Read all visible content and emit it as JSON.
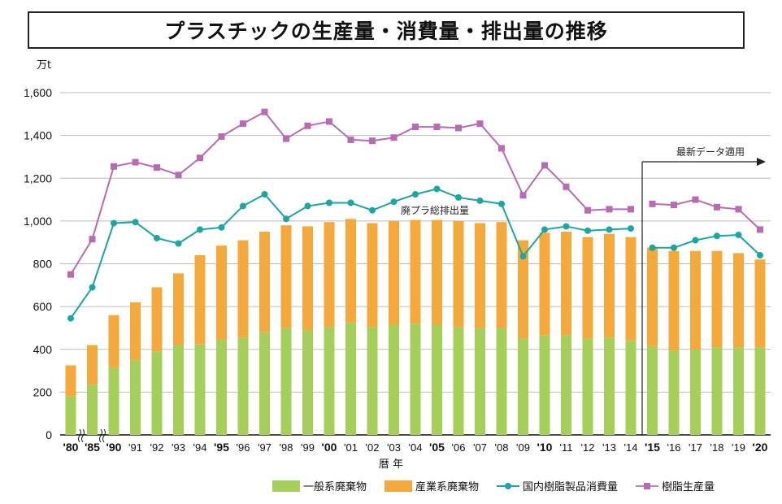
{
  "title": "プラスチックの生産量・消費量・排出量の推移",
  "y_unit": "万t",
  "x_axis_title": "暦 年",
  "annotations": {
    "waste_total_label": "廃プラ総排出量",
    "latest_data_label": "最新データ適用"
  },
  "legend": {
    "general_waste": "一般系廃棄物",
    "industrial_waste": "産業系廃棄物",
    "domestic_consumption": "国内樹脂製品消費量",
    "resin_production": "樹脂生産量"
  },
  "colors": {
    "general_waste": "#a6cf5a",
    "industrial_waste": "#f5a93b",
    "domestic_consumption": "#1aa7a1",
    "resin_production": "#b86ab3"
  },
  "chart_data": {
    "type": "bar",
    "title": "プラスチックの生産量・消費量・排出量の推移",
    "xlabel": "暦 年",
    "ylabel": "万t",
    "ylim": [
      0,
      1600
    ],
    "yticks": [
      "0",
      "200",
      "400",
      "600",
      "800",
      "1,000",
      "1,200",
      "1,400",
      "1,600"
    ],
    "grid": true,
    "legend_position": "bottom",
    "categories": [
      "'80",
      "'85",
      "'90",
      "'91",
      "'92",
      "'93",
      "'94",
      "'95",
      "'96",
      "'97",
      "'98",
      "'99",
      "'00",
      "'01",
      "'02",
      "'03",
      "'04",
      "'05",
      "'06",
      "'07",
      "'08",
      "'09",
      "'10",
      "'11",
      "'12",
      "'13",
      "'14",
      "'15",
      "'16",
      "'17",
      "'18",
      "'19",
      "'20"
    ],
    "bold_categories": [
      "'80",
      "'85",
      "'90",
      "'95",
      "'00",
      "'05",
      "'10",
      "'15",
      "'20"
    ],
    "series": [
      {
        "name": "一般系廃棄物",
        "kind": "stacked-bar",
        "values": [
          180,
          235,
          315,
          350,
          390,
          420,
          425,
          445,
          455,
          480,
          500,
          490,
          505,
          525,
          505,
          515,
          520,
          515,
          505,
          500,
          500,
          450,
          465,
          465,
          450,
          455,
          440,
          415,
          395,
          400,
          410,
          410,
          410
        ]
      },
      {
        "name": "産業系廃棄物",
        "kind": "stacked-bar",
        "values": [
          145,
          185,
          245,
          270,
          300,
          335,
          415,
          440,
          455,
          470,
          480,
          485,
          490,
          485,
          485,
          485,
          485,
          490,
          495,
          490,
          495,
          460,
          480,
          485,
          475,
          485,
          485,
          460,
          465,
          460,
          450,
          440,
          410
        ]
      },
      {
        "name": "国内樹脂製品消費量",
        "kind": "line",
        "values": [
          545,
          690,
          990,
          995,
          920,
          895,
          960,
          970,
          1070,
          1125,
          1010,
          1070,
          1085,
          1085,
          1050,
          1090,
          1125,
          1150,
          1110,
          1095,
          1080,
          835,
          960,
          975,
          955,
          960,
          965,
          875,
          875,
          910,
          930,
          935,
          840
        ]
      },
      {
        "name": "樹脂生産量",
        "kind": "line",
        "values": [
          750,
          915,
          1255,
          1275,
          1250,
          1215,
          1295,
          1395,
          1455,
          1510,
          1385,
          1445,
          1465,
          1380,
          1375,
          1390,
          1440,
          1440,
          1435,
          1455,
          1340,
          1120,
          1260,
          1160,
          1050,
          1055,
          1055,
          1080,
          1075,
          1100,
          1065,
          1055,
          960
        ]
      }
    ]
  }
}
